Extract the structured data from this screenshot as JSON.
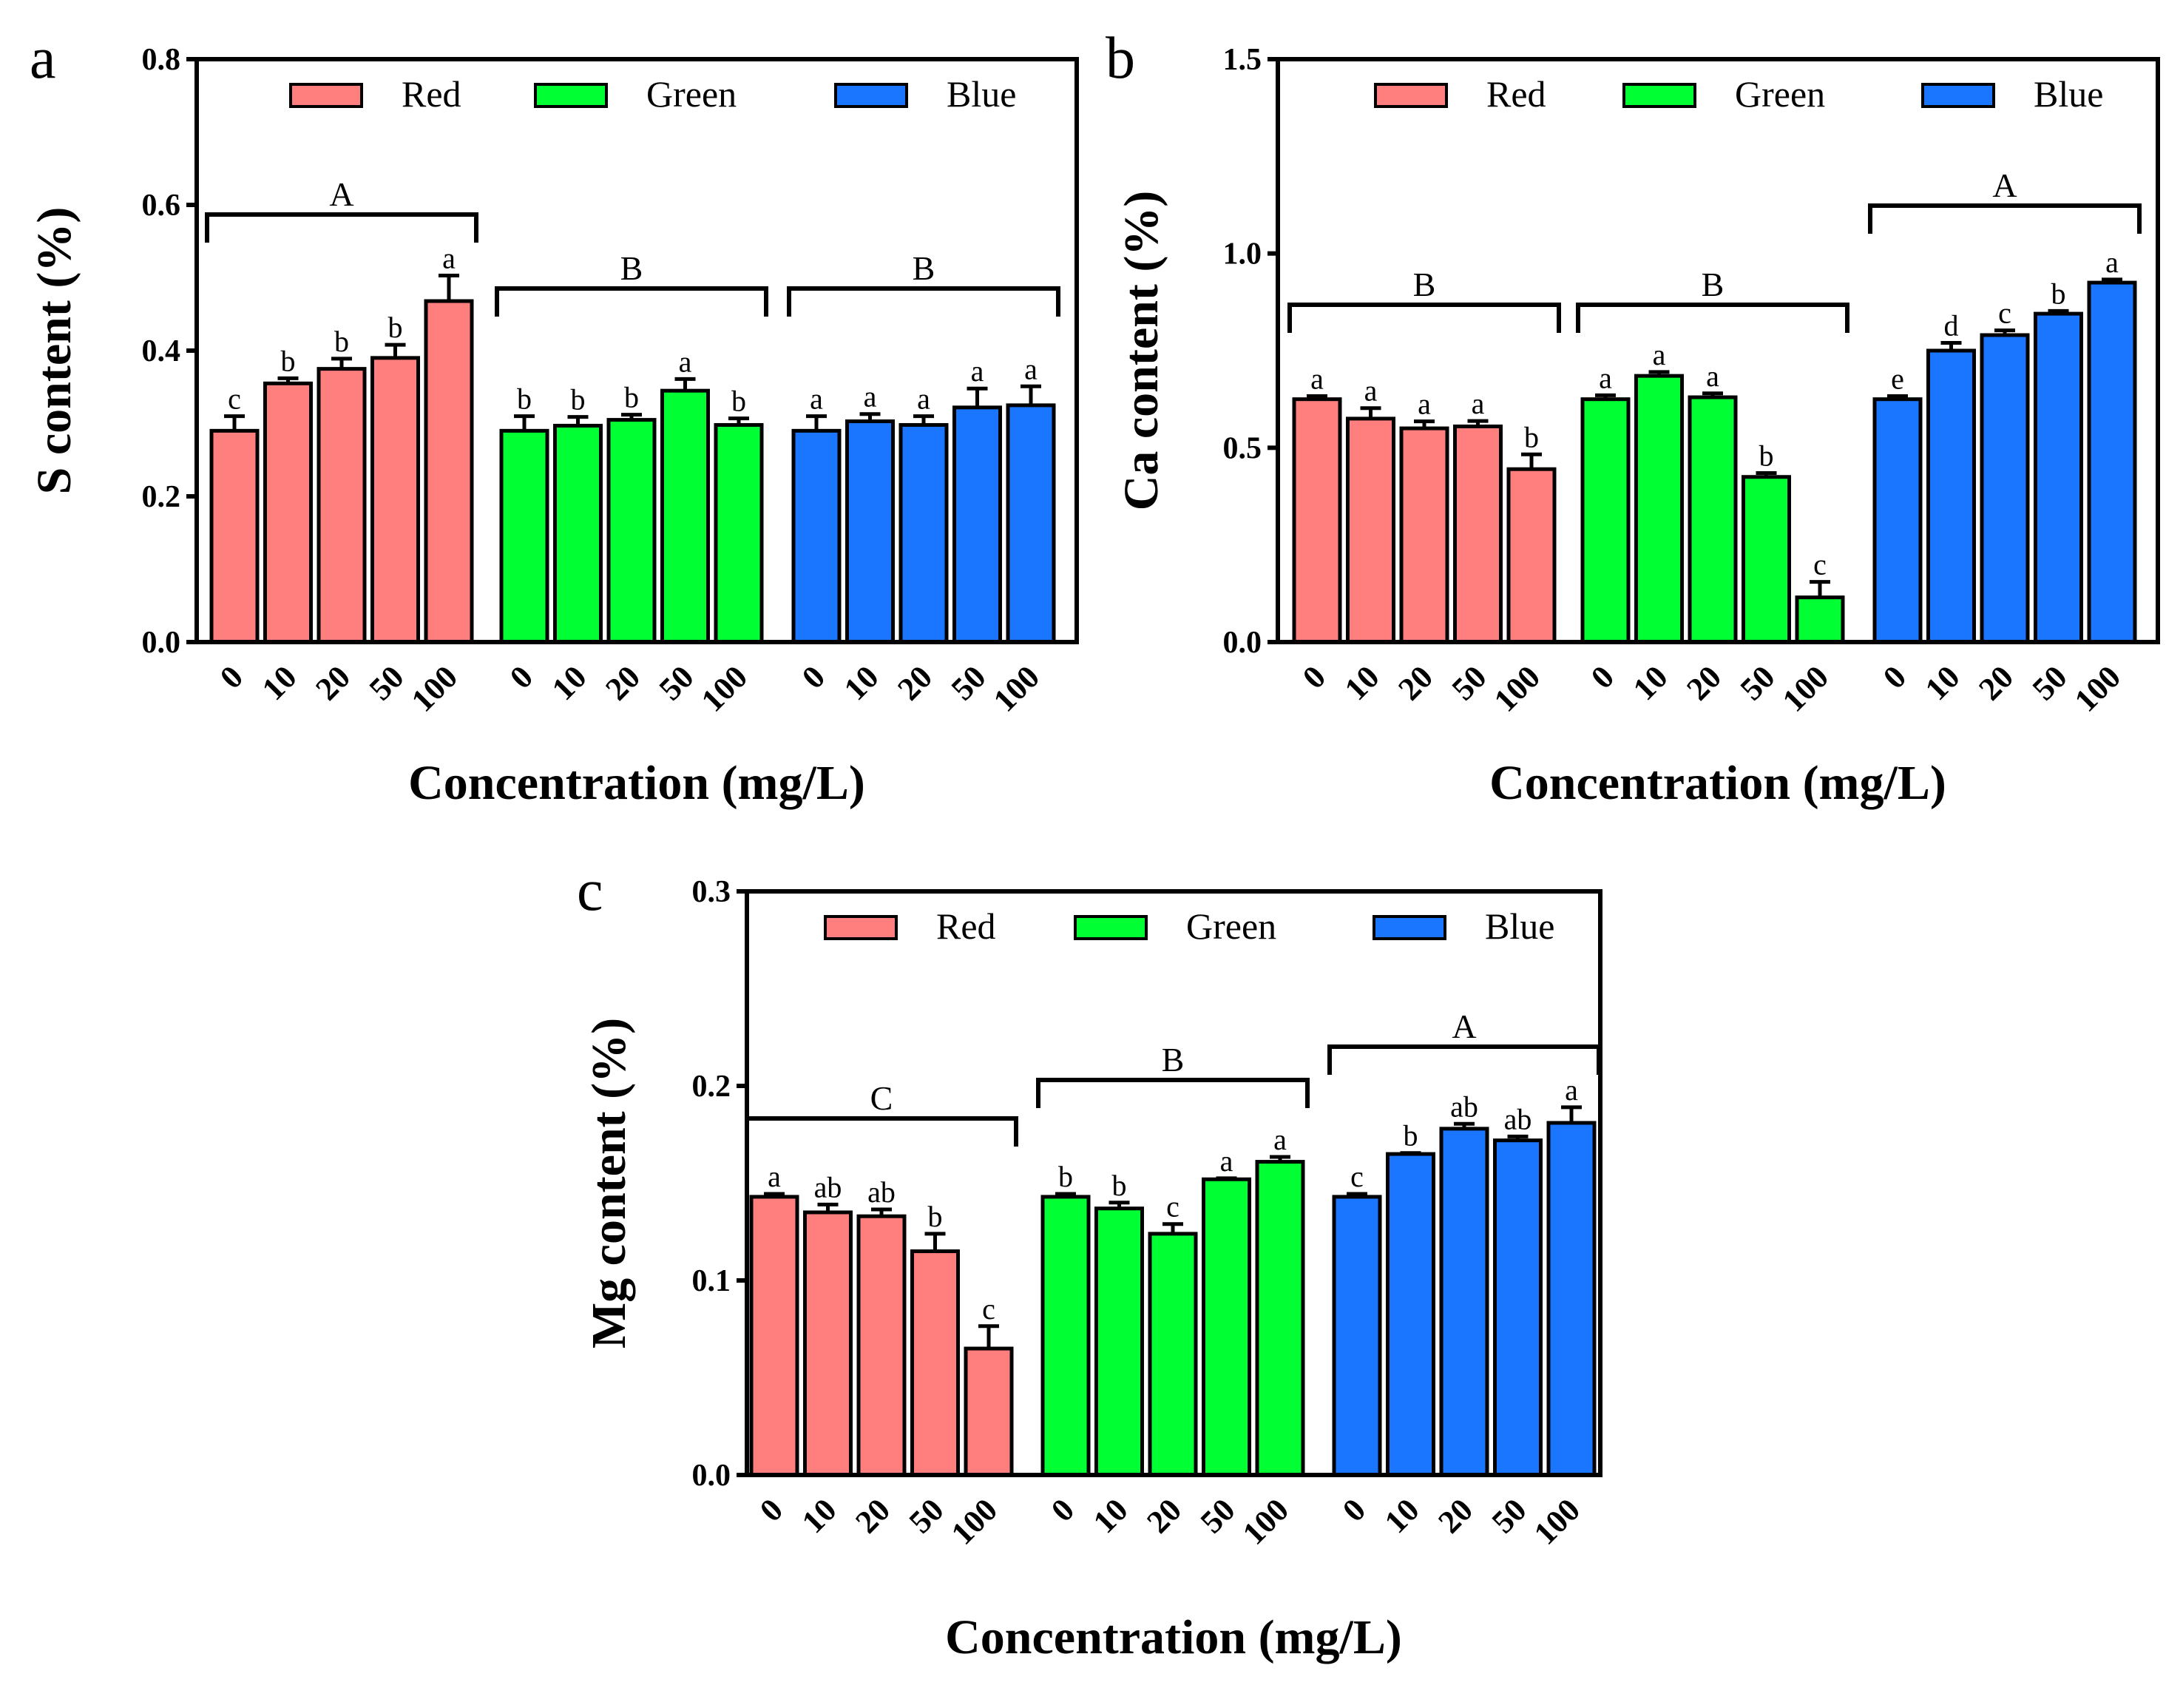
{
  "chart_data": [
    {
      "type": "bar",
      "panel": "a",
      "ylabel": "S content (%)",
      "xlabel": "Concentration (mg/L)",
      "ylim": [
        0,
        0.8
      ],
      "yticks": [
        0.0,
        0.2,
        0.4,
        0.6,
        0.8
      ],
      "categories": [
        "0",
        "10",
        "20",
        "50",
        "100"
      ],
      "legend": [
        "Red",
        "Green",
        "Blue"
      ],
      "legend_position": "top",
      "series": [
        {
          "name": "Red",
          "color": "#ff7f7f",
          "values": [
            0.29,
            0.355,
            0.375,
            0.39,
            0.468
          ],
          "errors": [
            0.02,
            0.007,
            0.014,
            0.018,
            0.035
          ],
          "labels": [
            "c",
            "b",
            "b",
            "b",
            "a"
          ],
          "group": "A"
        },
        {
          "name": "Green",
          "color": "#00ff33",
          "values": [
            0.29,
            0.297,
            0.305,
            0.345,
            0.298
          ],
          "errors": [
            0.02,
            0.012,
            0.007,
            0.016,
            0.009
          ],
          "labels": [
            "b",
            "b",
            "b",
            "a",
            "b"
          ],
          "group": "B"
        },
        {
          "name": "Blue",
          "color": "#1a75ff",
          "values": [
            0.29,
            0.303,
            0.298,
            0.322,
            0.325
          ],
          "errors": [
            0.02,
            0.01,
            0.012,
            0.026,
            0.026
          ],
          "labels": [
            "a",
            "a",
            "a",
            "a",
            "a"
          ],
          "group": "B"
        }
      ]
    },
    {
      "type": "bar",
      "panel": "b",
      "ylabel": "Ca content (%)",
      "xlabel": "Concentration (mg/L)",
      "ylim": [
        0,
        1.5
      ],
      "yticks": [
        0.0,
        0.5,
        1.0,
        1.5
      ],
      "categories": [
        "0",
        "10",
        "20",
        "50",
        "100"
      ],
      "legend": [
        "Red",
        "Green",
        "Blue"
      ],
      "legend_position": "top",
      "series": [
        {
          "name": "Red",
          "color": "#ff7f7f",
          "values": [
            0.625,
            0.575,
            0.55,
            0.555,
            0.445
          ],
          "errors": [
            0.008,
            0.027,
            0.018,
            0.014,
            0.038
          ],
          "labels": [
            "a",
            "a",
            "a",
            "a",
            "b"
          ],
          "group": "B"
        },
        {
          "name": "Green",
          "color": "#00ff33",
          "values": [
            0.625,
            0.685,
            0.63,
            0.425,
            0.115
          ],
          "errors": [
            0.01,
            0.01,
            0.01,
            0.01,
            0.04
          ],
          "labels": [
            "a",
            "a",
            "a",
            "b",
            "c"
          ],
          "group": "B"
        },
        {
          "name": "Blue",
          "color": "#1a75ff",
          "values": [
            0.625,
            0.75,
            0.79,
            0.845,
            0.925
          ],
          "errors": [
            0.008,
            0.02,
            0.012,
            0.007,
            0.008
          ],
          "labels": [
            "e",
            "d",
            "c",
            "b",
            "a"
          ],
          "group": "A"
        }
      ]
    },
    {
      "type": "bar",
      "panel": "c",
      "ylabel": "Mg content (%)",
      "xlabel": "Concentration (mg/L)",
      "ylim": [
        0,
        0.3
      ],
      "yticks": [
        0.0,
        0.1,
        0.2,
        0.3
      ],
      "categories": [
        "0",
        "10",
        "20",
        "50",
        "100"
      ],
      "legend": [
        "Red",
        "Green",
        "Blue"
      ],
      "legend_position": "top",
      "series": [
        {
          "name": "Red",
          "color": "#ff7f7f",
          "values": [
            0.143,
            0.135,
            0.133,
            0.115,
            0.065
          ],
          "errors": [
            0.0015,
            0.004,
            0.0035,
            0.009,
            0.0115
          ],
          "labels": [
            "a",
            "ab",
            "ab",
            "b",
            "c"
          ],
          "group": "C"
        },
        {
          "name": "Green",
          "color": "#00ff33",
          "values": [
            0.143,
            0.137,
            0.124,
            0.152,
            0.161
          ],
          "errors": [
            0.0015,
            0.003,
            0.005,
            0.0005,
            0.0025
          ],
          "labels": [
            "b",
            "b",
            "c",
            "a",
            "a"
          ],
          "group": "B"
        },
        {
          "name": "Blue",
          "color": "#1a75ff",
          "values": [
            0.143,
            0.165,
            0.178,
            0.172,
            0.181
          ],
          "errors": [
            0.0015,
            0.0005,
            0.0025,
            0.002,
            0.008
          ],
          "labels": [
            "c",
            "b",
            "ab",
            "ab",
            "a"
          ],
          "group": "A"
        }
      ]
    }
  ]
}
